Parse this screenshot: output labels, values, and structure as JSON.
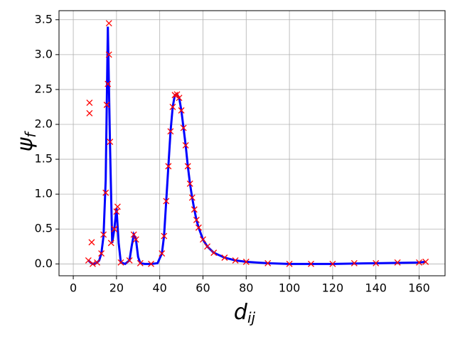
{
  "chart_data": {
    "type": "line",
    "xlabel": "d",
    "xlabel_sub": "ij",
    "ylabel": "ψ",
    "ylabel_sub": "f",
    "xlim": [
      -6.6,
      172
    ],
    "ylim": [
      -0.17,
      3.63
    ],
    "xticks": [
      0,
      20,
      40,
      60,
      80,
      100,
      120,
      140,
      160
    ],
    "yticks": [
      {
        "value": 0,
        "label": "0.0"
      },
      0.5,
      {
        "value": 1,
        "label": "1.0"
      },
      1.5,
      {
        "value": 2,
        "label": "2.0"
      },
      2.5,
      {
        "value": 3,
        "label": "3.0"
      },
      3.5
    ],
    "grid": true,
    "series": [
      {
        "color": "#0000ff",
        "style": "line",
        "x": [
          7,
          8,
          9,
          10,
          11,
          12,
          13,
          14,
          15,
          16,
          17,
          18,
          19,
          20,
          21,
          22,
          24,
          26,
          27,
          28,
          29,
          30,
          31,
          33,
          36,
          39,
          41,
          42,
          43,
          44,
          45,
          46,
          47,
          48,
          49,
          50,
          51,
          52,
          53,
          54,
          55,
          56,
          57,
          58,
          60,
          62,
          65,
          70,
          75,
          80,
          90,
          100,
          120,
          140,
          160,
          163
        ],
        "values": [
          0.05,
          0.02,
          0,
          0,
          0.02,
          0.05,
          0.15,
          0.4,
          1.2,
          3.4,
          1.7,
          0.3,
          0.5,
          0.8,
          0.3,
          0.02,
          0,
          0.05,
          0.25,
          0.42,
          0.35,
          0.1,
          0.01,
          0,
          0,
          0.01,
          0.15,
          0.4,
          0.9,
          1.4,
          1.9,
          2.25,
          2.42,
          2.43,
          2.38,
          2.2,
          1.95,
          1.7,
          1.4,
          1.15,
          0.95,
          0.78,
          0.63,
          0.52,
          0.35,
          0.25,
          0.16,
          0.09,
          0.05,
          0.03,
          0.01,
          0,
          0,
          0.01,
          0.02,
          0.03
        ]
      },
      {
        "color": "#ff0000",
        "style": "marker",
        "x": [
          7,
          7.5,
          7.5,
          8.5,
          9,
          11,
          13,
          14,
          15,
          15.5,
          16,
          16.5,
          16.5,
          17,
          17.5,
          19,
          20,
          20.5,
          22,
          26,
          28,
          29,
          31,
          36,
          41,
          42,
          43,
          44,
          45,
          46,
          47,
          48,
          49,
          50,
          51,
          52,
          53,
          54,
          55,
          56,
          57,
          58,
          60,
          62,
          65,
          70,
          75,
          80,
          90,
          100,
          110,
          120,
          130,
          140,
          150,
          160,
          163
        ],
        "values": [
          0.05,
          2.31,
          2.16,
          0.31,
          0,
          0.02,
          0.15,
          0.42,
          1.02,
          2.28,
          2.58,
          3.45,
          3.0,
          1.75,
          0.3,
          0.5,
          0.75,
          0.82,
          0.02,
          0.05,
          0.42,
          0.35,
          0.01,
          0,
          0.15,
          0.4,
          0.9,
          1.4,
          1.9,
          2.25,
          2.42,
          2.43,
          2.38,
          2.2,
          1.95,
          1.7,
          1.4,
          1.15,
          0.95,
          0.78,
          0.63,
          0.52,
          0.35,
          0.25,
          0.16,
          0.09,
          0.05,
          0.03,
          0.01,
          0,
          0,
          0,
          0.01,
          0.01,
          0.02,
          0.02,
          0.03
        ]
      }
    ]
  }
}
